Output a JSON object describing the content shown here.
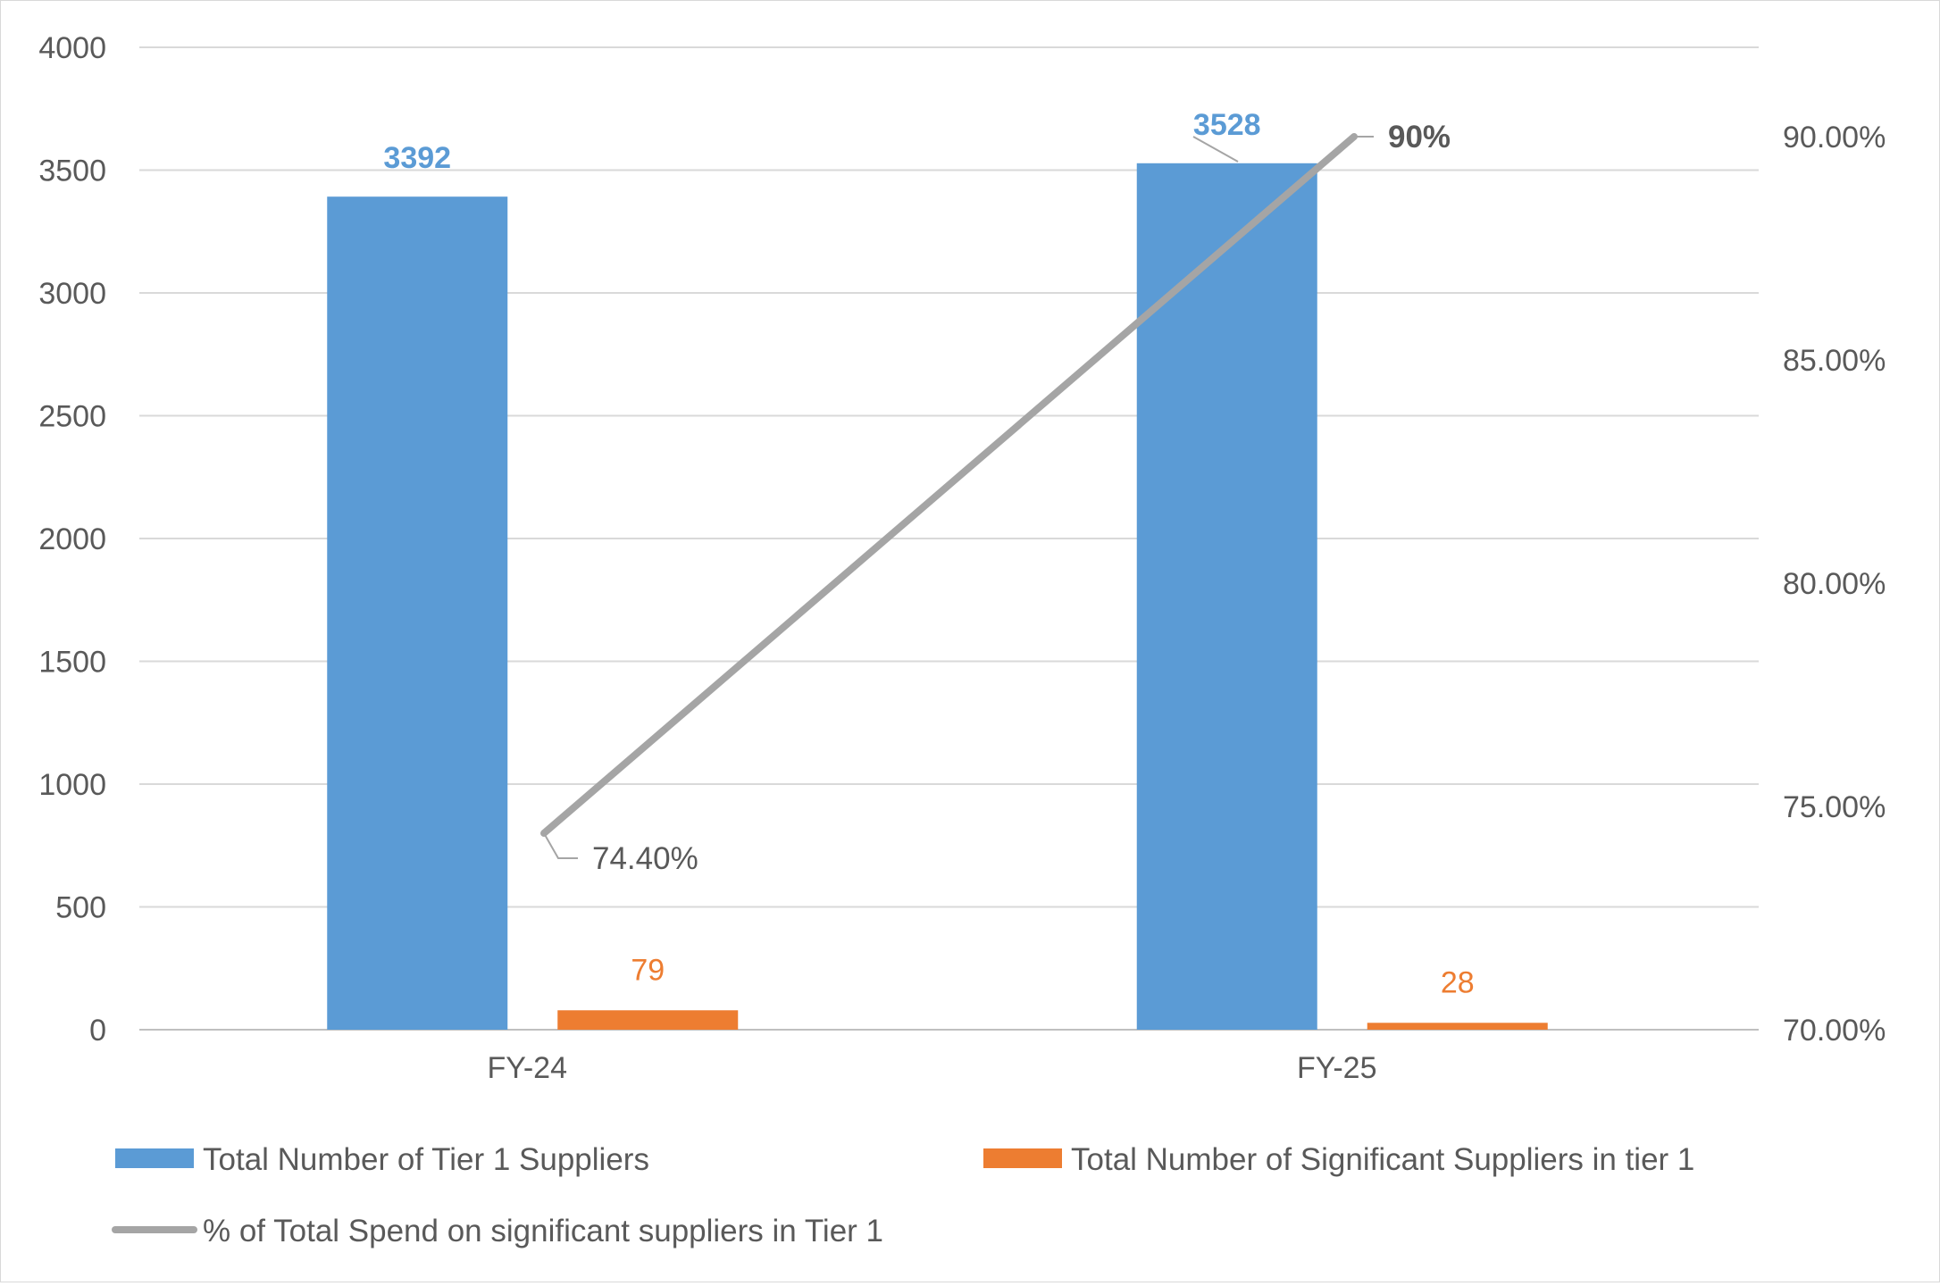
{
  "chart_data": {
    "type": "bar",
    "categories": [
      "FY-24",
      "FY-25"
    ],
    "series": [
      {
        "name": "Total Number of Tier 1 Suppliers",
        "type": "bar",
        "axis": "left",
        "color": "#5b9bd5",
        "values": [
          3392,
          3528
        ],
        "labels": [
          "3392",
          "3528"
        ]
      },
      {
        "name": "Total Number of Significant Suppliers in tier 1",
        "type": "bar",
        "axis": "left",
        "color": "#ed7d31",
        "values": [
          79,
          28
        ],
        "labels": [
          "79",
          "28"
        ]
      },
      {
        "name": "% of Total Spend on significant suppliers in Tier 1",
        "type": "line",
        "axis": "right",
        "color": "#a5a5a5",
        "values": [
          74.4,
          90
        ],
        "labels": [
          "74.40%",
          "90%"
        ]
      }
    ],
    "y_left": {
      "ylim": [
        0,
        4000
      ],
      "ticks": [
        0,
        500,
        1000,
        1500,
        2000,
        2500,
        3000,
        3500,
        4000
      ],
      "tick_labels": [
        "0",
        "500",
        "1000",
        "1500",
        "2000",
        "2500",
        "3000",
        "3500",
        "4000"
      ]
    },
    "y_right": {
      "ylim": [
        70,
        92
      ],
      "ticks": [
        70,
        75,
        80,
        85,
        90
      ],
      "tick_labels": [
        "70.00%",
        "75.00%",
        "80.00%",
        "85.00%",
        "90.00%"
      ]
    },
    "grid": true,
    "legend_position": "bottom"
  }
}
